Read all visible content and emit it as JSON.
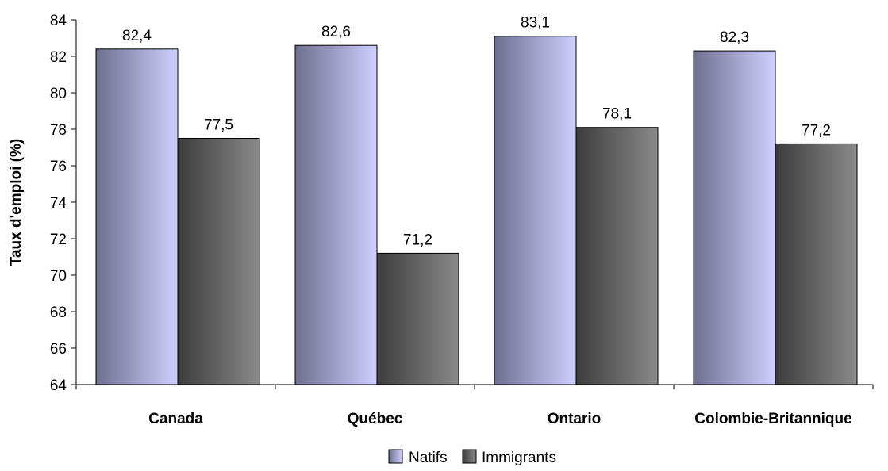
{
  "chart_data": {
    "type": "bar",
    "ylabel": "Taux d'emploi (%)",
    "xlabel": "",
    "ylim": [
      64,
      84
    ],
    "yticks": [
      64,
      66,
      68,
      70,
      72,
      74,
      76,
      78,
      80,
      82,
      84
    ],
    "ytick_labels": [
      "64",
      "66",
      "68",
      "70",
      "72",
      "74",
      "76",
      "78",
      "80",
      "82",
      "84"
    ],
    "categories": [
      "Canada",
      "Québec",
      "Ontario",
      "Colombie-Britannique"
    ],
    "series": [
      {
        "name": "Natifs",
        "values": [
          82.4,
          82.6,
          83.1,
          82.3
        ],
        "labels": [
          "82,4",
          "82,6",
          "83,1",
          "82,3"
        ],
        "color_light": "#cfcfff",
        "color_dark": "#6f6f8f"
      },
      {
        "name": "Immigrants",
        "values": [
          77.5,
          71.2,
          78.1,
          77.2
        ],
        "labels": [
          "77,5",
          "71,2",
          "78,1",
          "77,2"
        ],
        "color_light": "#8a8a8a",
        "color_dark": "#3c3c3c"
      }
    ],
    "grid": false,
    "legend_position": "bottom-center"
  }
}
